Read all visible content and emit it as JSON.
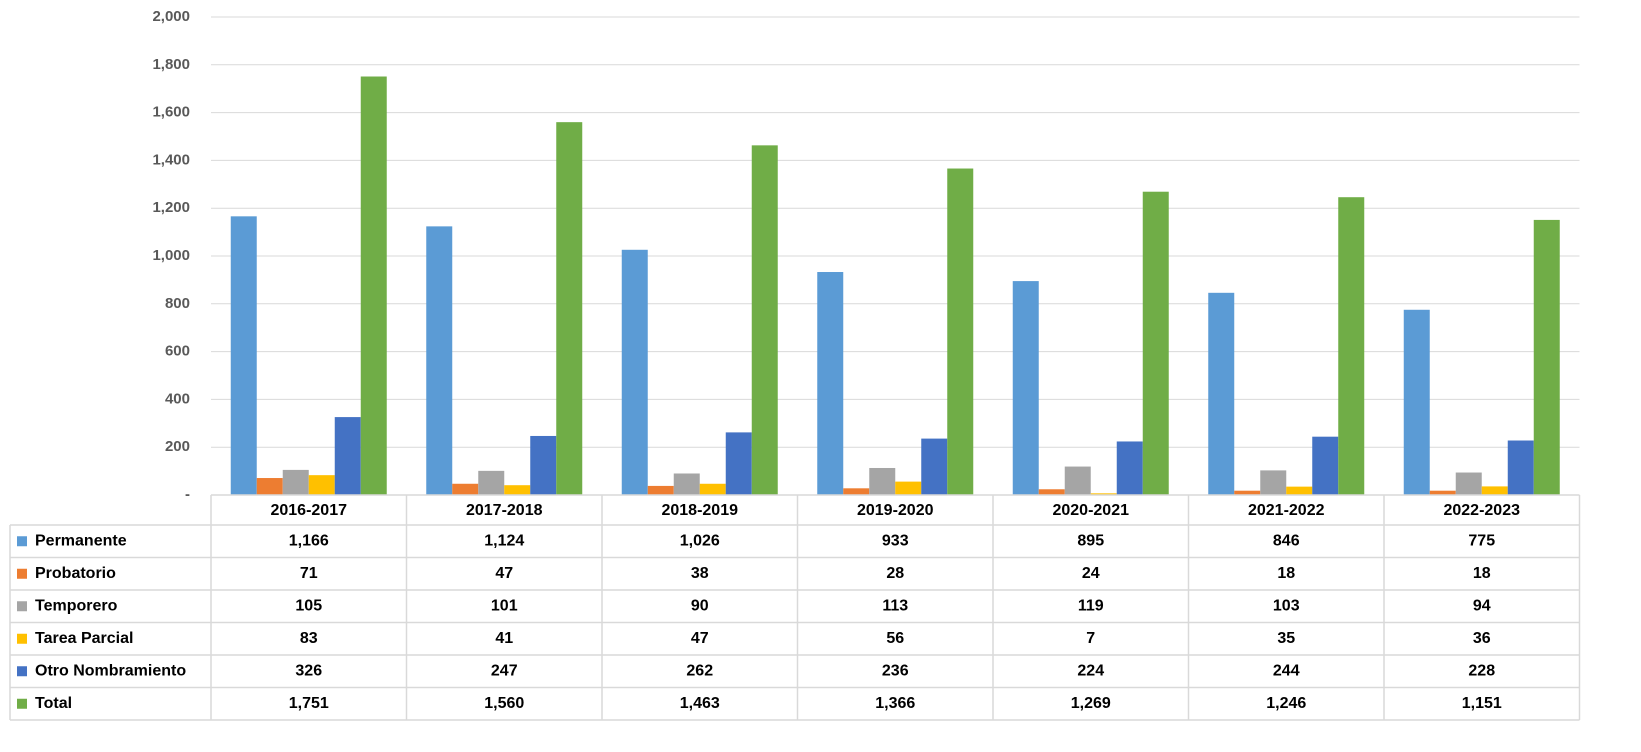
{
  "chart_data": {
    "type": "bar",
    "categories": [
      "2016-2017",
      "2017-2018",
      "2018-2019",
      "2019-2020",
      "2020-2021",
      "2021-2022",
      "2022-2023"
    ],
    "series": [
      {
        "name": "Permanente",
        "color": "#5b9bd5",
        "values": [
          1166,
          1124,
          1026,
          933,
          895,
          846,
          775
        ],
        "value_labels": [
          "1,166",
          "1,124",
          "1,026",
          "933",
          "895",
          "846",
          "775"
        ]
      },
      {
        "name": "Probatorio",
        "color": "#ed7d31",
        "values": [
          71,
          47,
          38,
          28,
          24,
          18,
          18
        ]
      },
      {
        "name": "Temporero",
        "color": "#a5a5a5",
        "values": [
          105,
          101,
          90,
          113,
          119,
          103,
          94
        ]
      },
      {
        "name": "Tarea Parcial",
        "color": "#ffc000",
        "values": [
          83,
          41,
          47,
          56,
          7,
          35,
          36
        ]
      },
      {
        "name": "Otro Nombramiento",
        "color": "#4472c4",
        "values": [
          326,
          247,
          262,
          236,
          224,
          244,
          228
        ]
      },
      {
        "name": "Total",
        "color": "#70ad47",
        "values": [
          1751,
          1560,
          1463,
          1366,
          1269,
          1246,
          1151
        ],
        "value_labels": [
          "1,751",
          "1,560",
          "1,463",
          "1,366",
          "1,269",
          "1,246",
          "1,151"
        ]
      }
    ],
    "ylim": [
      0,
      2000
    ],
    "yticks": [
      {
        "value": 0,
        "label": "-"
      },
      200,
      400,
      600,
      800,
      {
        "value": 1000,
        "label": "1,000"
      },
      {
        "value": 1200,
        "label": "1,200"
      },
      {
        "value": 1400,
        "label": "1,400"
      },
      {
        "value": 1600,
        "label": "1,600"
      },
      {
        "value": 1800,
        "label": "1,800"
      },
      {
        "value": 2000,
        "label": "2,000"
      }
    ],
    "grid": true
  }
}
